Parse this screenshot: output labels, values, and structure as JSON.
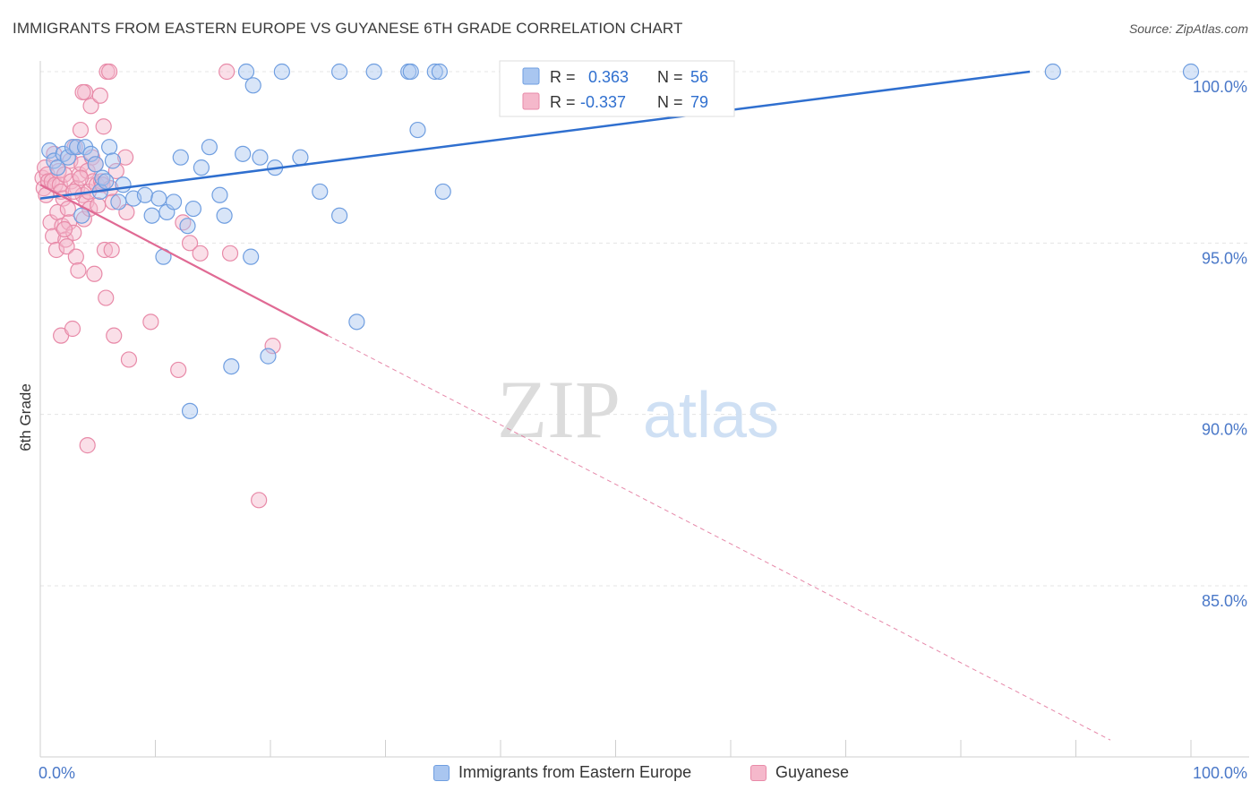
{
  "header": {
    "title": "IMMIGRANTS FROM EASTERN EUROPE VS GUYANESE 6TH GRADE CORRELATION CHART",
    "source": "Source: ZipAtlas.com"
  },
  "watermark": {
    "zip": "ZIP",
    "atlas": "atlas"
  },
  "chart_data": {
    "type": "scatter",
    "ylabel": "6th Grade",
    "xlim": [
      0,
      100
    ],
    "ylim": [
      80.5,
      100.9
    ],
    "x_tick_labels": [
      "0.0%",
      "100.0%"
    ],
    "y_ticks": [
      {
        "value": 100,
        "label": "100.0%"
      },
      {
        "value": 95,
        "label": "95.0%"
      },
      {
        "value": 90,
        "label": "90.0%"
      },
      {
        "value": 85,
        "label": "85.0%"
      }
    ],
    "grid": true,
    "legend_position": "top-center",
    "colors": {
      "blue_fill": "#a9c6f0",
      "blue_stroke": "#6f9ee0",
      "blue_line": "#2f6fcf",
      "pink_fill": "#f5b8cb",
      "pink_stroke": "#e88aa8",
      "pink_line": "#e06a94",
      "tick_label": "#4a78c8"
    },
    "series": [
      {
        "name": "Immigrants from Eastern Europe",
        "color": "blue",
        "stats": {
          "r_label": "R =",
          "r_value": "0.363",
          "n_label": "N =",
          "n_value": "56"
        },
        "trend": {
          "x0": 0,
          "y0": 96.3,
          "x1": 86,
          "y1": 100,
          "dashed_to": null
        },
        "points": [
          [
            0.8,
            97.7
          ],
          [
            1.2,
            97.4
          ],
          [
            1.5,
            97.2
          ],
          [
            2.0,
            97.6
          ],
          [
            2.4,
            97.5
          ],
          [
            2.8,
            97.8
          ],
          [
            3.2,
            97.8
          ],
          [
            3.6,
            95.8
          ],
          [
            3.9,
            97.8
          ],
          [
            4.4,
            97.6
          ],
          [
            4.8,
            97.3
          ],
          [
            5.2,
            96.5
          ],
          [
            5.4,
            96.9
          ],
          [
            5.7,
            96.8
          ],
          [
            6.0,
            97.8
          ],
          [
            6.3,
            97.4
          ],
          [
            6.8,
            96.2
          ],
          [
            7.2,
            96.7
          ],
          [
            8.1,
            96.3
          ],
          [
            9.1,
            96.4
          ],
          [
            9.7,
            95.8
          ],
          [
            10.3,
            96.3
          ],
          [
            11.0,
            95.9
          ],
          [
            11.6,
            96.2
          ],
          [
            12.2,
            97.5
          ],
          [
            12.8,
            95.5
          ],
          [
            13.3,
            96.0
          ],
          [
            14.0,
            97.2
          ],
          [
            14.7,
            97.8
          ],
          [
            15.6,
            96.4
          ],
          [
            16.0,
            95.8
          ],
          [
            17.6,
            97.6
          ],
          [
            19.1,
            97.5
          ],
          [
            20.4,
            97.2
          ],
          [
            22.6,
            97.5
          ],
          [
            24.3,
            96.5
          ],
          [
            26.0,
            95.8
          ],
          [
            10.7,
            94.6
          ],
          [
            18.3,
            94.6
          ],
          [
            13.0,
            90.1
          ],
          [
            16.6,
            91.4
          ],
          [
            19.8,
            91.7
          ],
          [
            27.5,
            92.7
          ],
          [
            18.5,
            99.6
          ],
          [
            17.9,
            100
          ],
          [
            21.0,
            100
          ],
          [
            26.0,
            100
          ],
          [
            29.0,
            100
          ],
          [
            32.0,
            100
          ],
          [
            32.2,
            100
          ],
          [
            34.3,
            100
          ],
          [
            34.7,
            100
          ],
          [
            32.8,
            98.3
          ],
          [
            35.0,
            96.5
          ],
          [
            88.0,
            100
          ],
          [
            100.0,
            100
          ]
        ]
      },
      {
        "name": "Guyanese",
        "color": "pink",
        "stats": {
          "r_label": "R =",
          "r_value": "-0.337",
          "n_label": "N =",
          "n_value": "79"
        },
        "trend": {
          "x0": 0,
          "y0": 96.7,
          "x1": 25,
          "y1": 92.3,
          "dashed_to": {
            "x": 93,
            "y": 80.5
          }
        },
        "points": [
          [
            0.2,
            96.9
          ],
          [
            0.3,
            96.6
          ],
          [
            0.4,
            97.2
          ],
          [
            0.5,
            96.4
          ],
          [
            0.6,
            97.0
          ],
          [
            0.7,
            96.8
          ],
          [
            0.9,
            95.6
          ],
          [
            1.0,
            96.8
          ],
          [
            1.1,
            95.2
          ],
          [
            1.2,
            97.6
          ],
          [
            1.3,
            96.7
          ],
          [
            1.4,
            94.8
          ],
          [
            1.5,
            95.9
          ],
          [
            1.6,
            97.1
          ],
          [
            1.7,
            96.7
          ],
          [
            1.8,
            96.5
          ],
          [
            1.9,
            95.5
          ],
          [
            2.0,
            96.3
          ],
          [
            2.1,
            97.0
          ],
          [
            2.2,
            95.1
          ],
          [
            2.3,
            94.9
          ],
          [
            2.4,
            96.0
          ],
          [
            2.5,
            95.6
          ],
          [
            2.6,
            97.4
          ],
          [
            2.7,
            96.8
          ],
          [
            2.9,
            95.3
          ],
          [
            3.0,
            97.8
          ],
          [
            3.1,
            94.6
          ],
          [
            3.2,
            96.6
          ],
          [
            3.3,
            94.2
          ],
          [
            3.4,
            97.0
          ],
          [
            3.5,
            98.3
          ],
          [
            3.6,
            97.3
          ],
          [
            3.7,
            96.4
          ],
          [
            3.8,
            95.7
          ],
          [
            3.9,
            99.4
          ],
          [
            4.0,
            96.2
          ],
          [
            4.1,
            97.1
          ],
          [
            4.2,
            96.5
          ],
          [
            4.3,
            96.0
          ],
          [
            4.4,
            99.0
          ],
          [
            4.5,
            97.5
          ],
          [
            4.6,
            96.8
          ],
          [
            4.7,
            94.1
          ],
          [
            4.8,
            97.3
          ],
          [
            4.9,
            96.7
          ],
          [
            5.0,
            96.1
          ],
          [
            5.2,
            99.3
          ],
          [
            5.3,
            96.8
          ],
          [
            5.4,
            96.7
          ],
          [
            5.5,
            98.4
          ],
          [
            5.6,
            94.8
          ],
          [
            5.7,
            93.4
          ],
          [
            5.8,
            100
          ],
          [
            6.0,
            100
          ],
          [
            6.1,
            96.6
          ],
          [
            6.2,
            94.8
          ],
          [
            6.3,
            96.2
          ],
          [
            6.4,
            92.3
          ],
          [
            6.6,
            97.1
          ],
          [
            7.4,
            97.5
          ],
          [
            7.5,
            95.9
          ],
          [
            7.7,
            91.6
          ],
          [
            9.6,
            92.7
          ],
          [
            12.0,
            91.3
          ],
          [
            12.4,
            95.6
          ],
          [
            13.0,
            95.0
          ],
          [
            13.9,
            94.7
          ],
          [
            16.2,
            100
          ],
          [
            16.5,
            94.7
          ],
          [
            20.2,
            92.0
          ],
          [
            4.1,
            89.1
          ],
          [
            19.0,
            87.5
          ],
          [
            2.1,
            95.4
          ],
          [
            3.5,
            96.9
          ],
          [
            1.8,
            92.3
          ],
          [
            2.8,
            92.5
          ],
          [
            3.7,
            99.4
          ],
          [
            2.9,
            96.5
          ]
        ]
      }
    ]
  },
  "legend_bottom": {
    "items": [
      {
        "label": "Immigrants from Eastern Europe"
      },
      {
        "label": "Guyanese"
      }
    ]
  }
}
